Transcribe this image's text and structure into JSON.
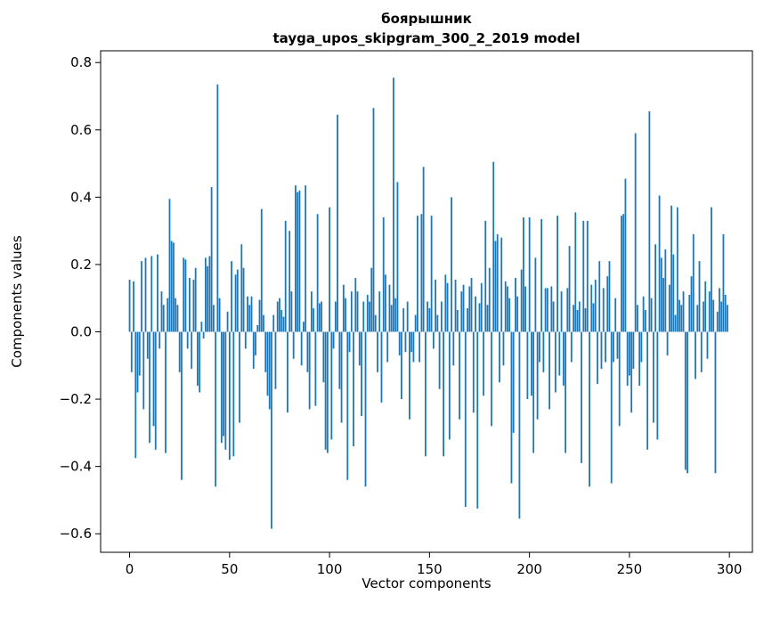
{
  "figure": {
    "title_line1": "боярышник",
    "title_line2": "tayga_upos_skipgram_300_2_2019 model",
    "xlabel": "Vector components",
    "ylabel": "Components values"
  },
  "chart_data": {
    "type": "bar",
    "title": "боярышник\ntayga_upos_skipgram_300_2_2019 model",
    "xlabel": "Vector components",
    "ylabel": "Components values",
    "bar_color": "#1f77b4",
    "frame_color": "#000000",
    "grid": false,
    "legend": "none",
    "xlim": [
      -14.5,
      311.5
    ],
    "ylim": [
      -0.655,
      0.835
    ],
    "xticks": [
      0,
      50,
      100,
      150,
      200,
      250,
      300
    ],
    "yticks": [
      -0.6,
      -0.4,
      -0.2,
      0.0,
      0.2,
      0.4,
      0.6,
      0.8
    ],
    "ytick_labels": [
      "−0.6",
      "−0.4",
      "−0.2",
      "0.0",
      "0.2",
      "0.4",
      "0.6",
      "0.8"
    ],
    "x": "component index 0–299",
    "values": [
      0.155,
      -0.12,
      0.15,
      -0.375,
      -0.18,
      -0.13,
      0.21,
      -0.23,
      0.22,
      -0.08,
      -0.33,
      0.225,
      -0.28,
      -0.35,
      0.23,
      -0.05,
      0.12,
      0.08,
      -0.36,
      0.1,
      0.395,
      0.27,
      0.265,
      0.1,
      0.08,
      -0.12,
      -0.44,
      0.22,
      0.215,
      -0.05,
      0.16,
      -0.11,
      0.155,
      0.19,
      -0.16,
      -0.18,
      0.03,
      -0.02,
      0.22,
      0.195,
      0.225,
      0.43,
      0.08,
      -0.46,
      0.735,
      0.1,
      -0.33,
      -0.31,
      -0.35,
      0.06,
      -0.38,
      0.21,
      -0.37,
      0.17,
      0.185,
      -0.27,
      0.26,
      0.19,
      -0.05,
      0.105,
      0.08,
      0.105,
      -0.11,
      -0.07,
      0.02,
      0.095,
      0.365,
      0.05,
      -0.12,
      -0.19,
      -0.23,
      -0.585,
      0.05,
      -0.17,
      0.09,
      0.1,
      0.065,
      0.045,
      0.33,
      -0.24,
      0.3,
      0.12,
      -0.08,
      0.435,
      0.415,
      0.42,
      -0.1,
      0.03,
      0.435,
      -0.12,
      -0.23,
      0.12,
      0.07,
      -0.22,
      0.35,
      0.085,
      0.09,
      -0.15,
      -0.35,
      -0.36,
      0.37,
      -0.32,
      -0.05,
      0.09,
      0.645,
      -0.17,
      -0.27,
      0.14,
      0.1,
      -0.44,
      -0.06,
      0.12,
      -0.34,
      0.16,
      0.12,
      -0.1,
      -0.25,
      0.09,
      -0.46,
      0.11,
      0.09,
      0.19,
      0.665,
      0.05,
      -0.12,
      0.12,
      -0.21,
      0.34,
      0.17,
      -0.09,
      0.14,
      0.08,
      0.755,
      0.1,
      0.445,
      -0.07,
      -0.2,
      0.07,
      -0.06,
      0.09,
      -0.26,
      -0.06,
      -0.09,
      0.05,
      0.345,
      -0.09,
      0.35,
      0.49,
      -0.37,
      0.09,
      0.07,
      0.345,
      -0.05,
      0.155,
      0.05,
      -0.17,
      0.09,
      -0.37,
      0.17,
      0.145,
      -0.32,
      0.4,
      -0.1,
      0.155,
      0.065,
      -0.26,
      0.12,
      0.14,
      -0.52,
      0.07,
      0.135,
      0.16,
      -0.24,
      0.105,
      -0.525,
      0.085,
      0.145,
      -0.19,
      0.33,
      0.08,
      0.19,
      -0.28,
      0.505,
      0.27,
      0.29,
      -0.15,
      0.28,
      -0.1,
      0.15,
      0.135,
      0.1,
      -0.45,
      -0.3,
      0.16,
      0.105,
      -0.555,
      0.185,
      0.34,
      0.135,
      -0.2,
      0.34,
      -0.19,
      -0.36,
      0.22,
      -0.26,
      -0.09,
      0.335,
      -0.12,
      0.13,
      0.13,
      -0.23,
      0.135,
      0.09,
      -0.18,
      0.345,
      -0.13,
      0.12,
      -0.16,
      -0.36,
      0.13,
      0.255,
      -0.09,
      0.08,
      0.355,
      0.065,
      0.09,
      -0.39,
      0.33,
      0.07,
      0.33,
      -0.46,
      0.14,
      0.085,
      0.155,
      -0.155,
      0.21,
      -0.11,
      0.13,
      -0.09,
      0.165,
      0.21,
      -0.45,
      -0.09,
      0.1,
      -0.08,
      -0.28,
      0.345,
      0.35,
      0.455,
      -0.16,
      -0.13,
      -0.24,
      -0.11,
      0.59,
      0.08,
      -0.16,
      -0.09,
      0.105,
      0.065,
      -0.35,
      0.655,
      0.1,
      -0.27,
      0.26,
      -0.32,
      0.405,
      0.22,
      0.16,
      0.245,
      -0.07,
      0.14,
      0.375,
      0.23,
      0.05,
      0.37,
      0.095,
      0.08,
      0.12,
      -0.41,
      -0.42,
      0.11,
      0.165,
      0.29,
      -0.14,
      0.08,
      0.21,
      -0.12,
      0.09,
      0.15,
      -0.08,
      0.12,
      0.37,
      0.095,
      -0.42,
      0.06,
      0.13,
      0.09,
      0.29,
      0.11,
      0.08
    ]
  }
}
